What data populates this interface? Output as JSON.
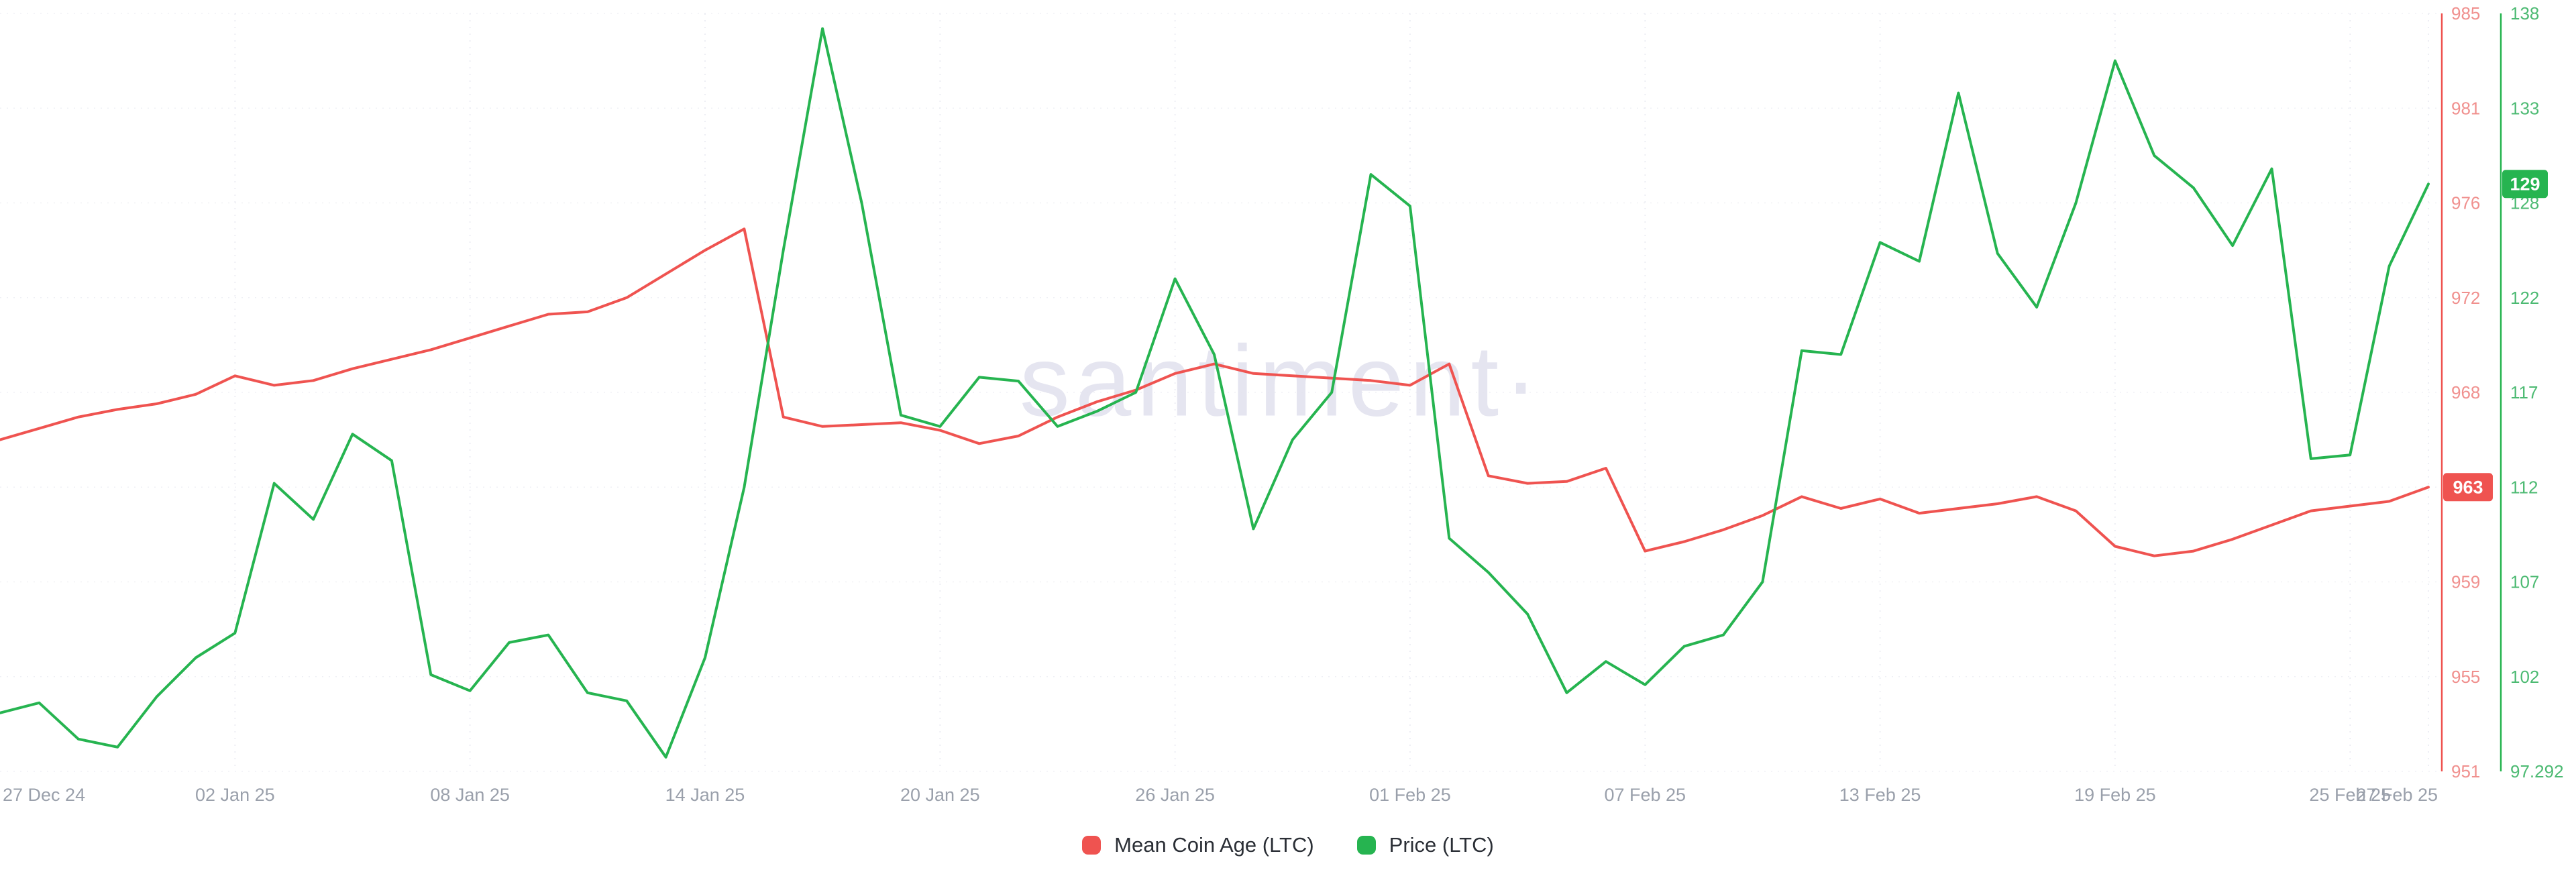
{
  "watermark": "santiment·",
  "legend": [
    {
      "label": "Mean Coin Age (LTC)",
      "color": "#ef5350"
    },
    {
      "label": "Price (LTC)",
      "color": "#26b450"
    }
  ],
  "chart_data": {
    "type": "line",
    "title": "",
    "grid": {
      "color": "#e3e4ee",
      "style": "dotted",
      "visible": true
    },
    "x": {
      "total_days": 62,
      "tick_days": [
        0,
        6,
        12,
        18,
        24,
        30,
        36,
        42,
        48,
        54,
        60,
        62
      ],
      "tick_labels": [
        "27 Dec 24",
        "02 Jan 25",
        "08 Jan 25",
        "14 Jan 25",
        "20 Jan 25",
        "26 Jan 25",
        "01 Feb 25",
        "07 Feb 25",
        "13 Feb 25",
        "19 Feb 25",
        "25 Feb 25",
        "27 Feb 25"
      ],
      "tick_label_color": "#9aa0ab",
      "dates": [
        "27 Dec 24",
        "28 Dec 24",
        "29 Dec 24",
        "30 Dec 24",
        "31 Dec 24",
        "01 Jan 25",
        "02 Jan 25",
        "03 Jan 25",
        "04 Jan 25",
        "05 Jan 25",
        "06 Jan 25",
        "07 Jan 25",
        "08 Jan 25",
        "09 Jan 25",
        "10 Jan 25",
        "11 Jan 25",
        "12 Jan 25",
        "13 Jan 25",
        "14 Jan 25",
        "15 Jan 25",
        "16 Jan 25",
        "17 Jan 25",
        "18 Jan 25",
        "19 Jan 25",
        "20 Jan 25",
        "21 Jan 25",
        "22 Jan 25",
        "23 Jan 25",
        "24 Jan 25",
        "25 Jan 25",
        "26 Jan 25",
        "27 Jan 25",
        "28 Jan 25",
        "29 Jan 25",
        "30 Jan 25",
        "31 Jan 25",
        "01 Feb 25",
        "02 Feb 25",
        "03 Feb 25",
        "04 Feb 25",
        "05 Feb 25",
        "06 Feb 25",
        "07 Feb 25",
        "08 Feb 25",
        "09 Feb 25",
        "10 Feb 25",
        "11 Feb 25",
        "12 Feb 25",
        "13 Feb 25",
        "14 Feb 25",
        "15 Feb 25",
        "16 Feb 25",
        "17 Feb 25",
        "18 Feb 25",
        "19 Feb 25",
        "20 Feb 25",
        "21 Feb 25",
        "22 Feb 25",
        "23 Feb 25",
        "24 Feb 25",
        "25 Feb 25",
        "26 Feb 25",
        "27 Feb 25"
      ]
    },
    "axes": {
      "mean_coin_age": {
        "side": "right-inner",
        "color": "#ef5350",
        "label_color": "#f0908e",
        "ticks_top_to_bottom": [
          985,
          981,
          976,
          972,
          968,
          963,
          959,
          955,
          951
        ],
        "tick_labels": [
          "985",
          "981",
          "976",
          "972",
          "968",
          "963",
          "959",
          "955",
          "951"
        ],
        "badge": "963",
        "badge_text_color": "#ffffff"
      },
      "price": {
        "side": "right-outer",
        "color": "#26b450",
        "label_color": "#4cba72",
        "ticks_top_to_bottom": [
          138,
          133,
          128,
          122,
          117,
          112,
          107,
          102,
          97.292
        ],
        "tick_labels": [
          "138",
          "133",
          "128",
          "122",
          "117",
          "112",
          "107",
          "102",
          "97.292"
        ],
        "badge": "129",
        "badge_text_color": "#ffffff"
      }
    },
    "series": [
      {
        "name": "Mean Coin Age (LTC)",
        "color": "#ef5350",
        "axis": "mean_coin_age",
        "values": [
          965.5,
          966.1,
          966.7,
          967.1,
          967.4,
          967.9,
          968.7,
          968.3,
          968.5,
          969.0,
          969.4,
          969.8,
          970.3,
          970.8,
          971.3,
          971.4,
          972.0,
          973.0,
          974.0,
          974.9,
          966.7,
          966.2,
          966.3,
          966.4,
          966.0,
          965.3,
          965.7,
          966.7,
          967.5,
          968.1,
          968.8,
          969.2,
          968.8,
          968.7,
          968.6,
          968.5,
          968.3,
          969.2,
          963.6,
          963.2,
          963.3,
          964.0,
          960.3,
          960.7,
          961.2,
          961.8,
          962.6,
          962.1,
          962.5,
          961.9,
          962.1,
          962.3,
          962.6,
          962.0,
          960.5,
          960.1,
          960.3,
          960.8,
          961.4,
          962.0,
          962.2,
          962.4,
          963.0
        ]
      },
      {
        "name": "Price (LTC)",
        "color": "#26b450",
        "axis": "price",
        "values": [
          100.2,
          100.7,
          98.9,
          98.5,
          101.0,
          103.0,
          104.3,
          112.2,
          110.3,
          114.8,
          113.4,
          102.1,
          101.3,
          103.8,
          104.2,
          101.2,
          100.8,
          98.0,
          103.0,
          112.0,
          125.0,
          137.2,
          128.0,
          115.8,
          115.2,
          117.8,
          117.6,
          115.2,
          116.0,
          117.0,
          123.2,
          119.0,
          109.8,
          114.5,
          117.0,
          129.5,
          127.8,
          109.3,
          107.5,
          105.3,
          101.2,
          102.8,
          101.6,
          103.6,
          104.2,
          107.0,
          119.2,
          119.0,
          125.5,
          124.3,
          133.8,
          124.8,
          121.5,
          128.0,
          135.5,
          130.5,
          128.8,
          125.3,
          129.8,
          113.5,
          113.7,
          124.0,
          129.0
        ]
      }
    ]
  }
}
